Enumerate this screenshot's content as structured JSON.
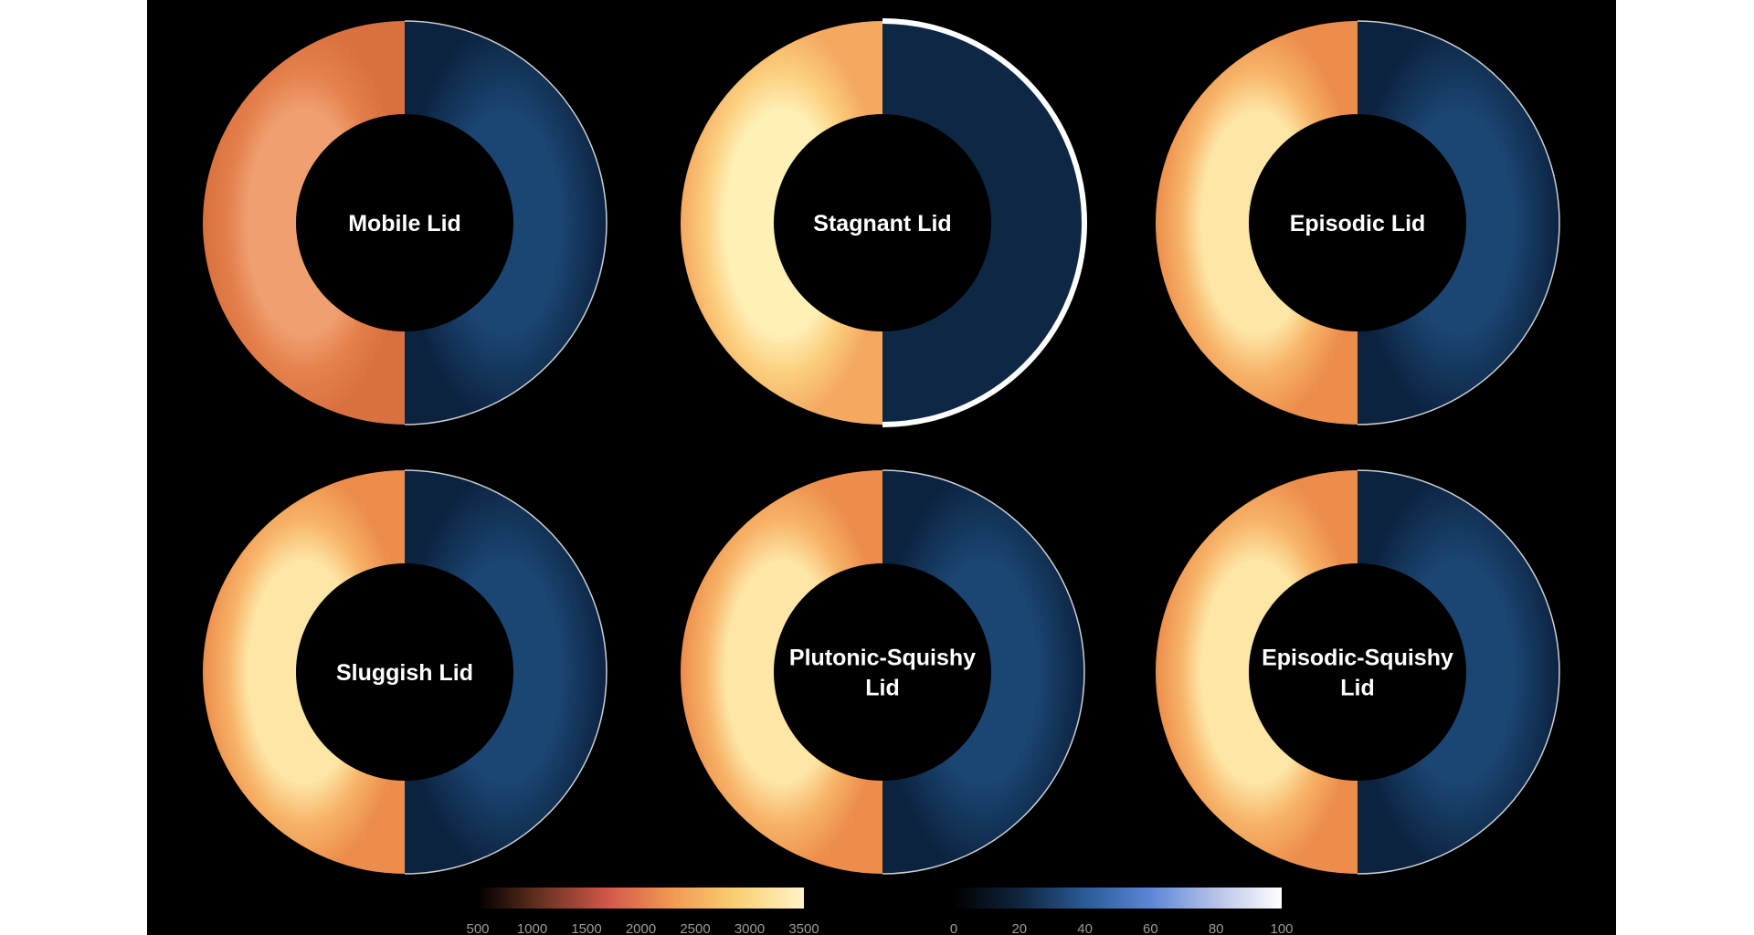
{
  "panels": [
    {
      "label_lines": [
        "Mobile Lid"
      ],
      "left_palette": "orange",
      "outer_highlight": false
    },
    {
      "label_lines": [
        "Stagnant Lid"
      ],
      "left_palette": "yellow",
      "outer_highlight": true
    },
    {
      "label_lines": [
        "Episodic Lid"
      ],
      "left_palette": "yellow-orange",
      "outer_highlight": false
    },
    {
      "label_lines": [
        "Sluggish Lid"
      ],
      "left_palette": "yellow-orange",
      "outer_highlight": false
    },
    {
      "label_lines": [
        "Plutonic-Squishy",
        "Lid"
      ],
      "left_palette": "yellow-orange",
      "outer_highlight": false
    },
    {
      "label_lines": [
        "Episodic-Squishy",
        "Lid"
      ],
      "left_palette": "yellow-orange",
      "outer_highlight": false
    }
  ],
  "colorbars": [
    {
      "ticks": [
        "500",
        "1000",
        "1500",
        "2000",
        "2500",
        "3000",
        "3500"
      ],
      "colors": [
        "#000000",
        "#6b3322",
        "#d3574a",
        "#f29a52",
        "#f9d176",
        "#fff4c6"
      ]
    },
    {
      "ticks": [
        "0",
        "20",
        "40",
        "60",
        "80",
        "100"
      ],
      "colors": [
        "#000000",
        "#10253f",
        "#2a5a96",
        "#5b86d6",
        "#b6c2e8",
        "#ffffff"
      ]
    }
  ],
  "colors": {
    "background": "#000000",
    "orange": "#e98a55",
    "yellow": "#f9c576",
    "blue": "#0f2d4e"
  }
}
